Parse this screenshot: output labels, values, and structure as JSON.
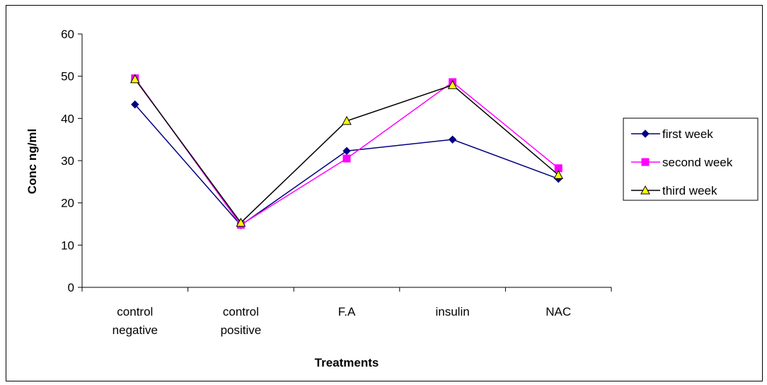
{
  "chart_data": {
    "type": "line",
    "title": "",
    "xlabel": "Treatments",
    "ylabel": "Conc ng/ml",
    "ylim": [
      0,
      60
    ],
    "yticks": [
      "0",
      "10",
      "20",
      "30",
      "40",
      "50",
      "60"
    ],
    "categories": [
      [
        "control",
        "negative"
      ],
      [
        "control",
        "positive"
      ],
      [
        "F.A"
      ],
      [
        "insulin"
      ],
      [
        "NAC"
      ]
    ],
    "grid": false,
    "legend_position": "right",
    "series": [
      {
        "name": "first week",
        "values": [
          43.3,
          14.7,
          32.3,
          35.0,
          25.7
        ],
        "color": "#000080",
        "marker": "diamond"
      },
      {
        "name": "second week",
        "values": [
          49.5,
          14.8,
          30.5,
          48.6,
          28.2
        ],
        "color": "#FF00FF",
        "marker": "square"
      },
      {
        "name": "third week",
        "values": [
          49.3,
          15.3,
          39.4,
          47.9,
          26.6
        ],
        "color": "#000000",
        "marker": "triangle",
        "marker_fill": "#FFFF00"
      }
    ]
  }
}
